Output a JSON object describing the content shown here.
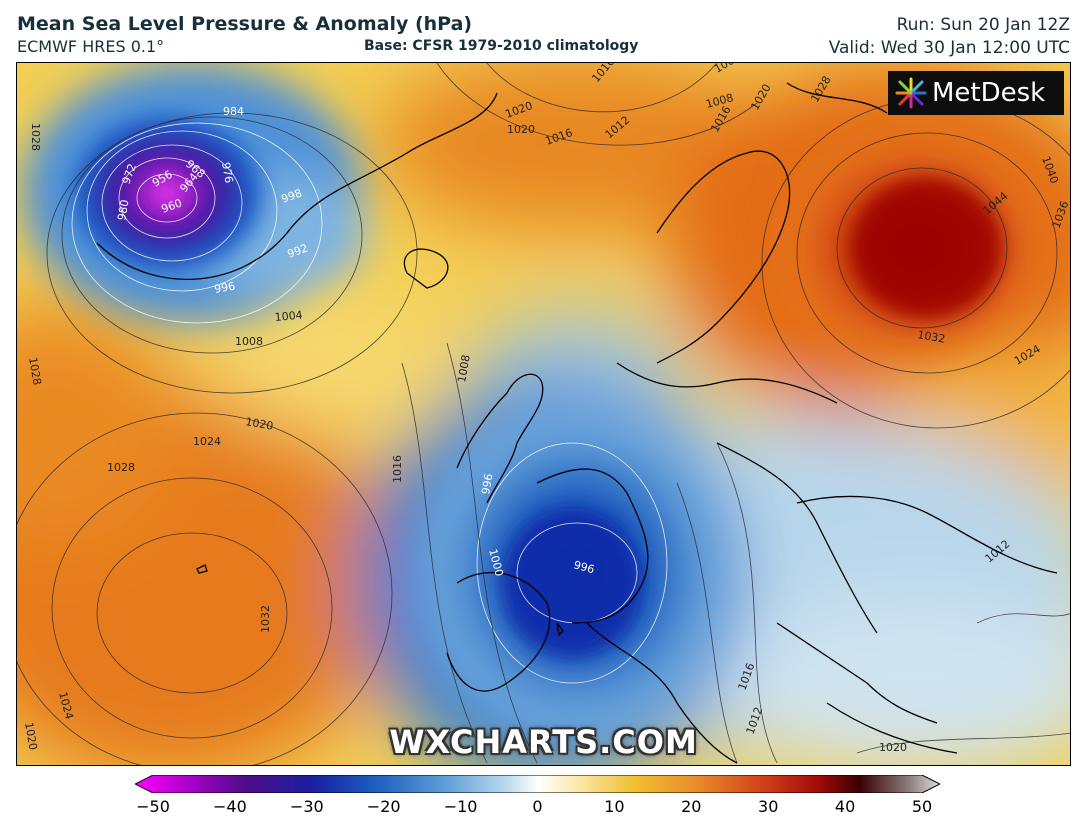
{
  "header": {
    "title": "Mean Sea Level Pressure & Anomaly (hPa)",
    "model": "ECMWF HRES 0.1°",
    "base": "Base: CFSR 1979-2010 climatology",
    "run": "Run: Sun 20 Jan 12Z",
    "valid": "Valid: Wed 30 Jan 12:00 UTC"
  },
  "branding": {
    "logo_text": "MetDesk",
    "logo_icon": "metdesk-burst-icon",
    "watermark": "WXCHARTS.COM"
  },
  "map": {
    "isobar_labels": [
      "1028",
      "1020",
      "1016",
      "1012",
      "1008",
      "1004",
      "1000",
      "996",
      "992",
      "984",
      "976",
      "972",
      "968",
      "964",
      "960",
      "956",
      "980",
      "1024",
      "1032",
      "1044",
      "1040",
      "1036"
    ],
    "contour_labels": [
      {
        "text": "984"
      },
      {
        "text": "976"
      },
      {
        "text": "968"
      },
      {
        "text": "972"
      },
      {
        "text": "956"
      },
      {
        "text": "964"
      },
      {
        "text": "960"
      },
      {
        "text": "980"
      },
      {
        "text": "998"
      },
      {
        "text": "992"
      },
      {
        "text": "996"
      },
      {
        "text": "1004"
      },
      {
        "text": "1008"
      },
      {
        "text": "1020"
      },
      {
        "text": "1016"
      },
      {
        "text": "1012"
      },
      {
        "text": "1016"
      },
      {
        "text": "1020"
      },
      {
        "text": "1028"
      },
      {
        "text": "1028"
      },
      {
        "text": "1020"
      },
      {
        "text": "1024"
      },
      {
        "text": "1028"
      },
      {
        "text": "1032"
      },
      {
        "text": "1024"
      },
      {
        "text": "1020"
      },
      {
        "text": "1016"
      },
      {
        "text": "1008"
      },
      {
        "text": "996"
      },
      {
        "text": "1000"
      },
      {
        "text": "996"
      },
      {
        "text": "1012"
      },
      {
        "text": "1016"
      },
      {
        "text": "1012"
      },
      {
        "text": "1020"
      },
      {
        "text": "1044"
      },
      {
        "text": "1040"
      },
      {
        "text": "1036"
      },
      {
        "text": "1032"
      },
      {
        "text": "1024"
      },
      {
        "text": "1028"
      },
      {
        "text": "1020"
      },
      {
        "text": "1016"
      },
      {
        "text": "1008"
      },
      {
        "text": "1004"
      }
    ]
  },
  "colorbar": {
    "ticks": [
      "−50",
      "−40",
      "−30",
      "−20",
      "−10",
      "0",
      "10",
      "20",
      "30",
      "40",
      "50"
    ],
    "colors": {
      "min": "#ff00ff",
      "deep_neg": "#3a0f8a",
      "mid_neg": "#1e5fc0",
      "light_neg": "#b7d8ec",
      "zero": "#ffffff",
      "light_pos": "#f7d66a",
      "mid_pos": "#e9892a",
      "deep_pos": "#b11a0a",
      "max_dark": "#3a0000",
      "max": "#d8d0d0"
    }
  }
}
